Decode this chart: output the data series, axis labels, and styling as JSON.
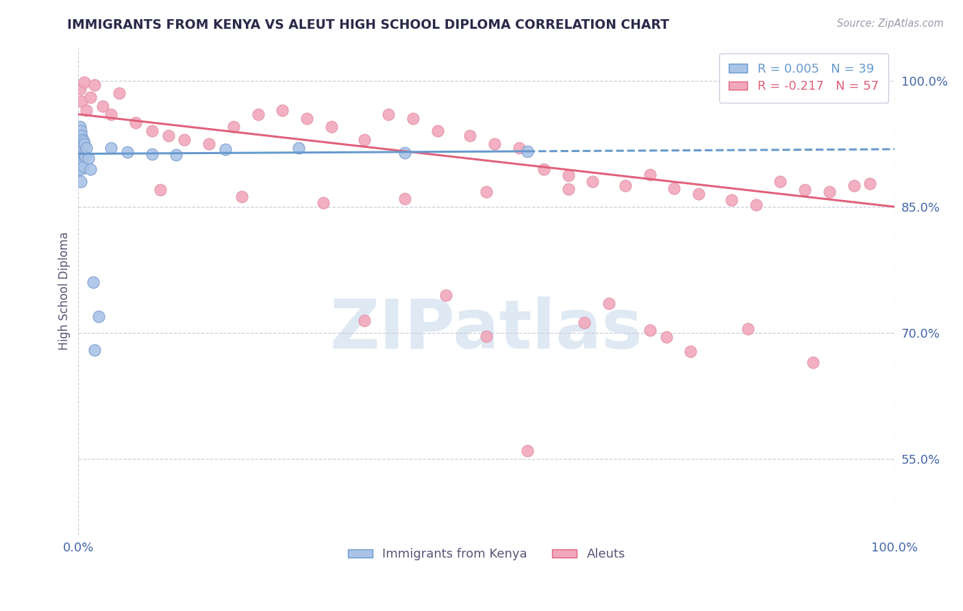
{
  "title": "IMMIGRANTS FROM KENYA VS ALEUT HIGH SCHOOL DIPLOMA CORRELATION CHART",
  "source": "Source: ZipAtlas.com",
  "ylabel": "High School Diploma",
  "legend_r_blue": "R = 0.005",
  "legend_n_blue": "N = 39",
  "legend_r_pink": "R = -0.217",
  "legend_n_pink": "N = 57",
  "xlim": [
    0.0,
    1.0
  ],
  "ylim": [
    0.46,
    1.04
  ],
  "yticks": [
    0.55,
    0.7,
    0.85,
    1.0
  ],
  "ytick_labels": [
    "55.0%",
    "70.0%",
    "85.0%",
    "100.0%"
  ],
  "xtick_labels": [
    "0.0%",
    "100.0%"
  ],
  "xticks": [
    0.0,
    1.0
  ],
  "blue_scatter_color": "#aac4e8",
  "pink_scatter_color": "#f2a8bc",
  "blue_line_color": "#6699cc",
  "pink_line_color": "#e0607a",
  "title_color": "#2a2a4a",
  "axis_label_color": "#4466aa",
  "grid_color": "#ccccdd",
  "background_color": "#ffffff",
  "blue_scatter_x": [
    0.001,
    0.001,
    0.001,
    0.001,
    0.001,
    0.002,
    0.002,
    0.002,
    0.002,
    0.003,
    0.003,
    0.003,
    0.003,
    0.003,
    0.004,
    0.004,
    0.004,
    0.005,
    0.005,
    0.005,
    0.006,
    0.006,
    0.006,
    0.007,
    0.008,
    0.01,
    0.012,
    0.015,
    0.018,
    0.02,
    0.025,
    0.04,
    0.06,
    0.09,
    0.12,
    0.18,
    0.27,
    0.4,
    0.55
  ],
  "blue_scatter_y": [
    0.935,
    0.925,
    0.915,
    0.905,
    0.895,
    0.945,
    0.93,
    0.915,
    0.9,
    0.94,
    0.925,
    0.91,
    0.895,
    0.88,
    0.935,
    0.92,
    0.905,
    0.93,
    0.915,
    0.9,
    0.928,
    0.913,
    0.898,
    0.925,
    0.91,
    0.92,
    0.908,
    0.895,
    0.76,
    0.68,
    0.72,
    0.92,
    0.915,
    0.913,
    0.912,
    0.918,
    0.92,
    0.914,
    0.916
  ],
  "pink_scatter_x": [
    0.002,
    0.004,
    0.007,
    0.01,
    0.015,
    0.02,
    0.03,
    0.04,
    0.05,
    0.07,
    0.09,
    0.11,
    0.13,
    0.16,
    0.19,
    0.22,
    0.25,
    0.28,
    0.31,
    0.35,
    0.38,
    0.41,
    0.44,
    0.48,
    0.51,
    0.54,
    0.57,
    0.6,
    0.63,
    0.67,
    0.7,
    0.73,
    0.76,
    0.8,
    0.83,
    0.86,
    0.89,
    0.92,
    0.95,
    0.97,
    0.1,
    0.2,
    0.3,
    0.4,
    0.5,
    0.6,
    0.7,
    0.35,
    0.5,
    0.65,
    0.75,
    0.55,
    0.45,
    0.62,
    0.72,
    0.82,
    0.9
  ],
  "pink_scatter_y": [
    0.99,
    0.975,
    0.998,
    0.965,
    0.98,
    0.995,
    0.97,
    0.96,
    0.985,
    0.95,
    0.94,
    0.935,
    0.93,
    0.925,
    0.945,
    0.96,
    0.965,
    0.955,
    0.945,
    0.93,
    0.96,
    0.955,
    0.94,
    0.935,
    0.925,
    0.92,
    0.895,
    0.887,
    0.88,
    0.875,
    0.888,
    0.872,
    0.865,
    0.858,
    0.852,
    0.88,
    0.87,
    0.868,
    0.875,
    0.878,
    0.87,
    0.862,
    0.855,
    0.86,
    0.868,
    0.871,
    0.703,
    0.715,
    0.696,
    0.735,
    0.678,
    0.56,
    0.745,
    0.712,
    0.695,
    0.705,
    0.665
  ],
  "blue_trend_x": [
    0.0,
    0.55
  ],
  "blue_trend_y": [
    0.913,
    0.916
  ],
  "pink_trend_x": [
    0.0,
    1.0
  ],
  "pink_trend_y": [
    0.96,
    0.85
  ],
  "watermark_text": "ZIPatlas",
  "watermark_color": "#d8e4f0",
  "watermark_fontsize": 72
}
